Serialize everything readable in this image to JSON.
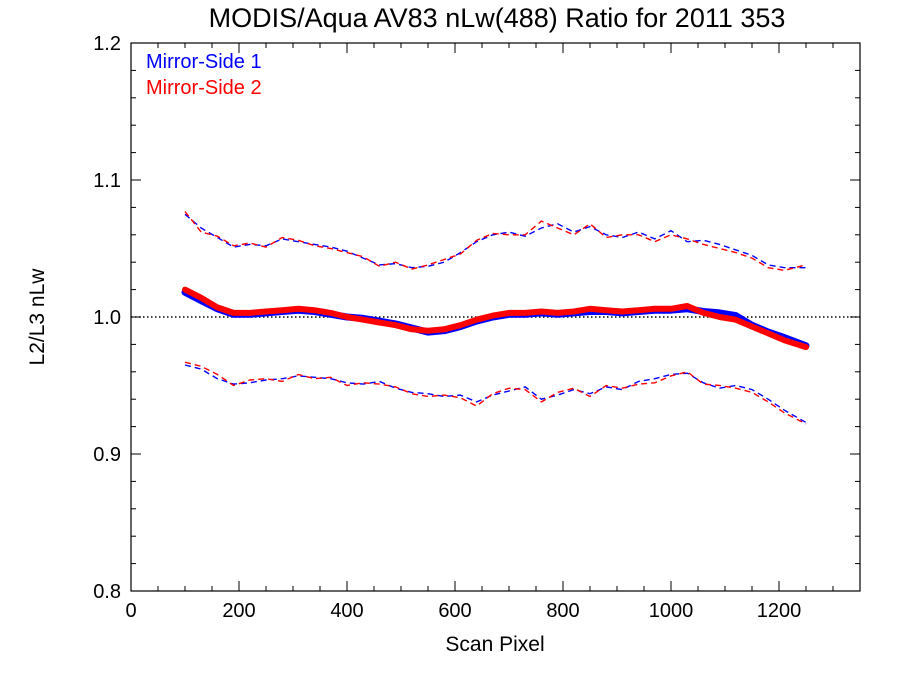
{
  "chart_data": {
    "type": "line",
    "title": "MODIS/Aqua AV83 nLw(488) Ratio for 2011 353",
    "xlabel": "Scan Pixel",
    "ylabel": "L2/L3 nLw",
    "xlim": [
      0,
      1350
    ],
    "ylim": [
      0.8,
      1.2
    ],
    "x_ticks": [
      0,
      200,
      400,
      600,
      800,
      1000,
      1200
    ],
    "y_ticks": [
      0.8,
      0.9,
      1.0,
      1.1,
      1.2
    ],
    "x_tick_labels": [
      "0",
      "200",
      "400",
      "600",
      "800",
      "1000",
      "1200"
    ],
    "y_tick_labels": [
      "0.8",
      "0.9",
      "1.0",
      "1.1",
      "1.2"
    ],
    "reference_line": 1.0,
    "legend_position": "top-left",
    "colors": {
      "ms1": "#0000ff",
      "ms2": "#ff0000",
      "reference": "#000000"
    },
    "series": [
      {
        "name": "Mirror-Side 1",
        "color": "#0000ff",
        "x": [
          100,
          130,
          160,
          190,
          220,
          250,
          280,
          310,
          340,
          370,
          400,
          430,
          460,
          490,
          520,
          550,
          580,
          610,
          640,
          670,
          700,
          730,
          760,
          790,
          820,
          850,
          880,
          910,
          940,
          970,
          1000,
          1030,
          1060,
          1090,
          1120,
          1150,
          1180,
          1210,
          1250
        ],
        "mean": [
          1.018,
          1.012,
          1.006,
          1.002,
          1.002,
          1.003,
          1.004,
          1.005,
          1.004,
          1.002,
          1.0,
          0.999,
          0.997,
          0.995,
          0.992,
          0.989,
          0.99,
          0.993,
          0.997,
          1.0,
          1.002,
          1.002,
          1.003,
          1.002,
          1.003,
          1.004,
          1.004,
          1.003,
          1.004,
          1.005,
          1.005,
          1.006,
          1.004,
          1.003,
          1.001,
          0.994,
          0.989,
          0.985,
          0.979
        ],
        "upper": [
          1.075,
          1.065,
          1.058,
          1.051,
          1.053,
          1.052,
          1.057,
          1.055,
          1.053,
          1.051,
          1.048,
          1.043,
          1.038,
          1.039,
          1.036,
          1.037,
          1.04,
          1.047,
          1.055,
          1.06,
          1.062,
          1.059,
          1.065,
          1.068,
          1.062,
          1.066,
          1.06,
          1.058,
          1.062,
          1.057,
          1.063,
          1.055,
          1.056,
          1.053,
          1.049,
          1.045,
          1.038,
          1.036,
          1.036
        ],
        "lower": [
          0.965,
          0.962,
          0.955,
          0.951,
          0.952,
          0.954,
          0.955,
          0.957,
          0.956,
          0.955,
          0.952,
          0.951,
          0.953,
          0.948,
          0.945,
          0.944,
          0.942,
          0.943,
          0.938,
          0.943,
          0.946,
          0.949,
          0.94,
          0.943,
          0.947,
          0.944,
          0.949,
          0.947,
          0.953,
          0.955,
          0.958,
          0.959,
          0.952,
          0.948,
          0.95,
          0.947,
          0.94,
          0.932,
          0.923
        ]
      },
      {
        "name": "Mirror-Side 2",
        "color": "#ff0000",
        "x": [
          100,
          130,
          160,
          190,
          220,
          250,
          280,
          310,
          340,
          370,
          400,
          430,
          460,
          490,
          520,
          550,
          580,
          610,
          640,
          670,
          700,
          730,
          760,
          790,
          820,
          850,
          880,
          910,
          940,
          970,
          1000,
          1030,
          1060,
          1090,
          1120,
          1150,
          1180,
          1210,
          1250
        ],
        "mean": [
          1.02,
          1.014,
          1.007,
          1.003,
          1.003,
          1.004,
          1.005,
          1.006,
          1.005,
          1.003,
          1.0,
          0.998,
          0.996,
          0.994,
          0.991,
          0.99,
          0.991,
          0.994,
          0.998,
          1.001,
          1.003,
          1.003,
          1.004,
          1.003,
          1.004,
          1.006,
          1.005,
          1.004,
          1.005,
          1.006,
          1.006,
          1.008,
          1.003,
          1.0,
          0.998,
          0.993,
          0.988,
          0.983,
          0.978
        ],
        "upper": [
          1.077,
          1.062,
          1.059,
          1.052,
          1.054,
          1.051,
          1.058,
          1.056,
          1.052,
          1.05,
          1.047,
          1.044,
          1.037,
          1.04,
          1.035,
          1.038,
          1.042,
          1.046,
          1.056,
          1.061,
          1.06,
          1.06,
          1.07,
          1.065,
          1.06,
          1.068,
          1.058,
          1.06,
          1.06,
          1.055,
          1.06,
          1.057,
          1.053,
          1.05,
          1.047,
          1.043,
          1.036,
          1.034,
          1.038
        ],
        "lower": [
          0.967,
          0.964,
          0.958,
          0.95,
          0.954,
          0.955,
          0.953,
          0.958,
          0.955,
          0.956,
          0.95,
          0.952,
          0.951,
          0.949,
          0.944,
          0.942,
          0.943,
          0.941,
          0.935,
          0.944,
          0.948,
          0.947,
          0.938,
          0.945,
          0.948,
          0.942,
          0.95,
          0.948,
          0.951,
          0.952,
          0.957,
          0.96,
          0.951,
          0.95,
          0.948,
          0.945,
          0.938,
          0.93,
          0.922
        ]
      }
    ]
  }
}
